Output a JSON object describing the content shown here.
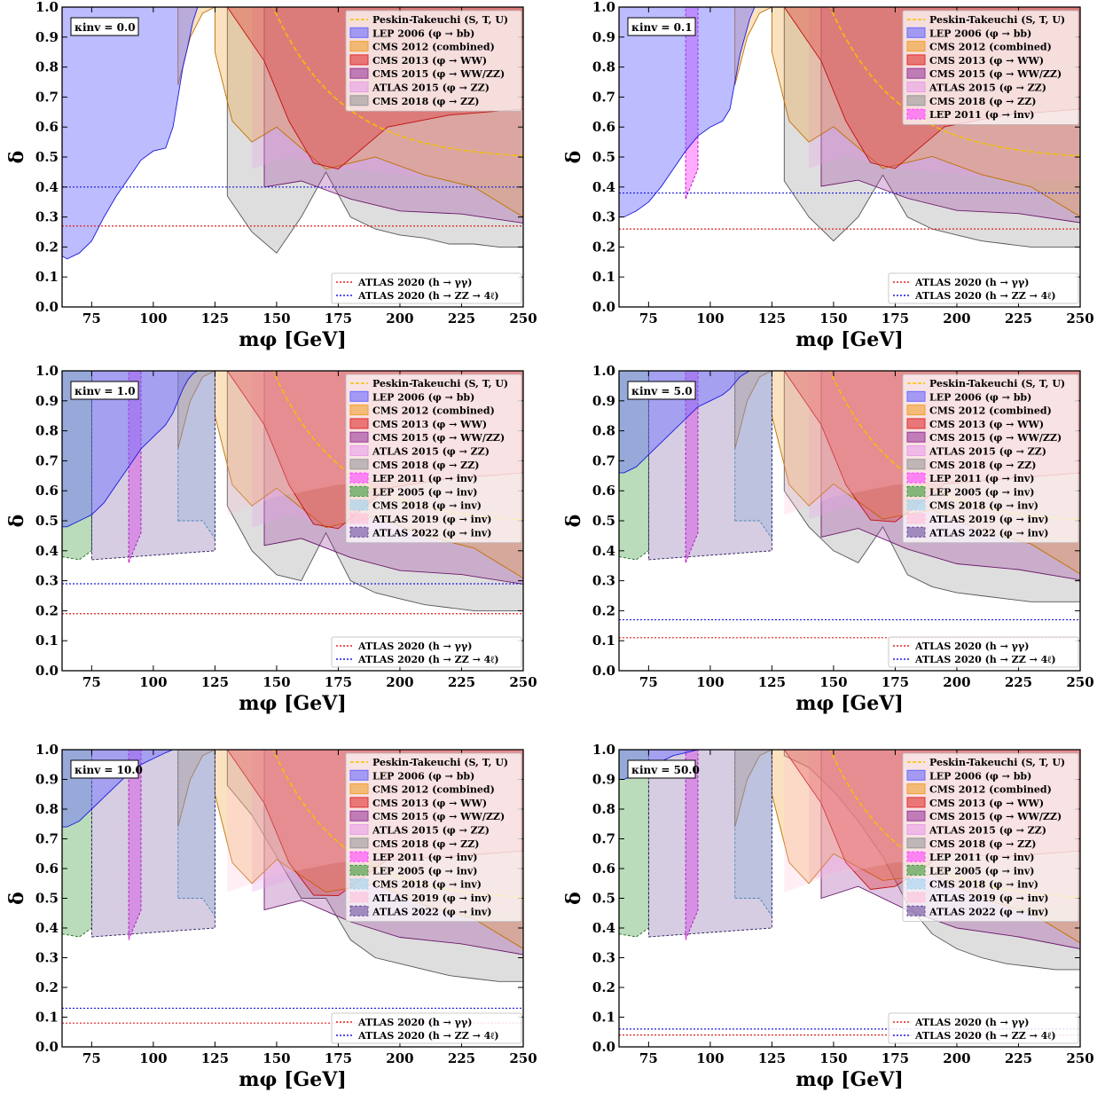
{
  "legend_main_labels": [
    "Peskin-Takeuchi (S, T, U)",
    "LEP 2006 (φ → bb)",
    "CMS 2012 (combined)",
    "CMS 2013 (φ → WW)",
    "CMS 2015 (φ → WW/ZZ)",
    "ATLAS 2015 (φ → ZZ)",
    "CMS 2018 (φ → ZZ)",
    "LEP 2011 (φ → inv)",
    "LEP 2005 (φ → inv)",
    "CMS 2018 (φ → inv)",
    "ATLAS 2019 (φ → inv)",
    "ATLAS 2022 (φ → inv)"
  ],
  "legend_h_labels": [
    "ATLAS 2020 (h → γγ)",
    "ATLAS 2020 (h → ZZ → 4ℓ)"
  ],
  "colors": {
    "peskin": "#f2c200",
    "lep2006": "#6a6aff",
    "cms2012": "#f0a030",
    "cms2013": "#e03030",
    "cms2015": "#9a3a9a",
    "atlas2015": "#e8a0e8",
    "cms2018zz": "#999999",
    "lep2011": "#ff44ff",
    "lep2005": "#3a9a3a",
    "cms2018inv": "#9fd3f0",
    "atlas2019": "#ffc0d8",
    "atlas2022": "#6a4a9a",
    "h_gamgam": "#e02020",
    "h_zz4l": "#1a1ae0"
  },
  "chart_data": [
    {
      "type": "area",
      "kappa_label": "κinv = 0.0",
      "xlabel": "mφ [GeV]",
      "ylabel": "δ",
      "xlim": [
        63,
        250
      ],
      "ylim": [
        0,
        1
      ],
      "xticks": [
        75,
        100,
        125,
        150,
        175,
        200,
        225,
        250
      ],
      "yticks": [
        0.0,
        0.1,
        0.2,
        0.3,
        0.4,
        0.5,
        0.6,
        0.7,
        0.8,
        0.9,
        1.0
      ],
      "legend_count": 7,
      "legend_h_position": "bottom-right",
      "h_lines": {
        "gamgam": 0.27,
        "zz4l": 0.4
      },
      "lep2006_boundary": {
        "x": [
          63,
          65,
          70,
          75,
          80,
          85,
          90,
          95,
          100,
          105,
          108,
          110,
          112,
          114,
          116,
          118
        ],
        "y": [
          0.17,
          0.16,
          0.18,
          0.22,
          0.3,
          0.37,
          0.43,
          0.49,
          0.52,
          0.53,
          0.6,
          0.7,
          0.8,
          0.87,
          0.95,
          1.0
        ]
      },
      "cms2018zz_boundary": {
        "x": [
          130,
          140,
          150,
          160,
          170,
          180,
          190,
          200,
          210,
          220,
          230,
          240,
          250
        ],
        "y": [
          0.37,
          0.25,
          0.18,
          0.3,
          0.45,
          0.3,
          0.26,
          0.24,
          0.23,
          0.21,
          0.21,
          0.2,
          0.2
        ]
      }
    },
    {
      "type": "area",
      "kappa_label": "κinv = 0.1",
      "xlabel": "mφ [GeV]",
      "ylabel": "δ",
      "xlim": [
        63,
        250
      ],
      "ylim": [
        0,
        1
      ],
      "xticks": [
        75,
        100,
        125,
        150,
        175,
        200,
        225,
        250
      ],
      "yticks": [
        0.0,
        0.1,
        0.2,
        0.3,
        0.4,
        0.5,
        0.6,
        0.7,
        0.8,
        0.9,
        1.0
      ],
      "legend_count": 8,
      "legend_h_position": "bottom-right",
      "h_lines": {
        "gamgam": 0.26,
        "zz4l": 0.38
      },
      "lep2006_boundary": {
        "x": [
          63,
          65,
          70,
          75,
          80,
          85,
          90,
          95,
          100,
          105,
          108,
          110,
          112,
          114,
          116,
          118
        ],
        "y": [
          0.3,
          0.3,
          0.32,
          0.35,
          0.4,
          0.46,
          0.52,
          0.57,
          0.6,
          0.62,
          0.66,
          0.75,
          0.84,
          0.9,
          0.96,
          1.0
        ]
      },
      "cms2018zz_boundary": {
        "x": [
          130,
          140,
          150,
          160,
          170,
          180,
          190,
          200,
          210,
          220,
          230,
          240,
          250
        ],
        "y": [
          0.42,
          0.3,
          0.22,
          0.3,
          0.44,
          0.3,
          0.26,
          0.24,
          0.22,
          0.21,
          0.2,
          0.2,
          0.2
        ]
      }
    },
    {
      "type": "area",
      "kappa_label": "κinv = 1.0",
      "xlabel": "mφ [GeV]",
      "ylabel": "δ",
      "xlim": [
        63,
        250
      ],
      "ylim": [
        0,
        1
      ],
      "xticks": [
        75,
        100,
        125,
        150,
        175,
        200,
        225,
        250
      ],
      "yticks": [
        0.0,
        0.1,
        0.2,
        0.3,
        0.4,
        0.5,
        0.6,
        0.7,
        0.8,
        0.9,
        1.0
      ],
      "legend_count": 12,
      "legend_h_position": "bottom-right",
      "h_lines": {
        "gamgam": 0.19,
        "zz4l": 0.29
      },
      "lep2006_boundary": {
        "x": [
          63,
          65,
          70,
          75,
          80,
          85,
          90,
          95,
          100,
          105,
          108,
          110,
          112,
          114,
          116,
          118
        ],
        "y": [
          0.48,
          0.48,
          0.5,
          0.52,
          0.56,
          0.62,
          0.68,
          0.74,
          0.78,
          0.82,
          0.86,
          0.9,
          0.94,
          0.97,
          0.99,
          1.0
        ]
      },
      "cms2018zz_boundary": {
        "x": [
          130,
          140,
          150,
          160,
          170,
          180,
          190,
          200,
          210,
          220,
          230,
          240,
          250
        ],
        "y": [
          0.55,
          0.4,
          0.32,
          0.3,
          0.46,
          0.3,
          0.26,
          0.24,
          0.22,
          0.21,
          0.2,
          0.2,
          0.2
        ]
      }
    },
    {
      "type": "area",
      "kappa_label": "κinv = 5.0",
      "xlabel": "mφ [GeV]",
      "ylabel": "δ",
      "xlim": [
        63,
        250
      ],
      "ylim": [
        0,
        1
      ],
      "xticks": [
        75,
        100,
        125,
        150,
        175,
        200,
        225,
        250
      ],
      "yticks": [
        0.0,
        0.1,
        0.2,
        0.3,
        0.4,
        0.5,
        0.6,
        0.7,
        0.8,
        0.9,
        1.0
      ],
      "legend_count": 12,
      "legend_h_position": "bottom-right",
      "h_lines": {
        "gamgam": 0.11,
        "zz4l": 0.17
      },
      "lep2006_boundary": {
        "x": [
          63,
          65,
          70,
          75,
          80,
          85,
          90,
          95,
          100,
          105,
          108,
          110,
          112,
          114,
          116,
          118
        ],
        "y": [
          0.66,
          0.66,
          0.68,
          0.72,
          0.76,
          0.8,
          0.84,
          0.88,
          0.9,
          0.92,
          0.94,
          0.96,
          0.98,
          0.99,
          1.0,
          1.0
        ]
      },
      "cms2018zz_boundary": {
        "x": [
          130,
          140,
          150,
          160,
          170,
          180,
          190,
          200,
          210,
          220,
          230,
          240,
          250
        ],
        "y": [
          0.6,
          0.48,
          0.4,
          0.36,
          0.48,
          0.32,
          0.28,
          0.26,
          0.25,
          0.24,
          0.23,
          0.23,
          0.23
        ]
      }
    },
    {
      "type": "area",
      "kappa_label": "κinv = 10.0",
      "xlabel": "mφ [GeV]",
      "ylabel": "δ",
      "xlim": [
        63,
        250
      ],
      "ylim": [
        0,
        1
      ],
      "xticks": [
        75,
        100,
        125,
        150,
        175,
        200,
        225,
        250
      ],
      "yticks": [
        0.0,
        0.1,
        0.2,
        0.3,
        0.4,
        0.5,
        0.6,
        0.7,
        0.8,
        0.9,
        1.0
      ],
      "legend_count": 12,
      "legend_h_position": "bottom-right",
      "h_lines": {
        "gamgam": 0.08,
        "zz4l": 0.13
      },
      "lep2006_boundary": {
        "x": [
          63,
          65,
          70,
          75,
          80,
          85,
          90,
          95,
          100,
          105,
          108,
          110,
          112,
          114,
          116,
          118
        ],
        "y": [
          0.74,
          0.74,
          0.76,
          0.8,
          0.84,
          0.88,
          0.92,
          0.95,
          0.97,
          0.99,
          1.0,
          1.0,
          1.0,
          1.0,
          1.0,
          1.0
        ]
      },
      "cms2018zz_boundary": {
        "x": [
          130,
          140,
          150,
          160,
          170,
          180,
          190,
          200,
          210,
          220,
          230,
          240,
          250
        ],
        "y": [
          0.88,
          0.78,
          0.64,
          0.5,
          0.5,
          0.36,
          0.3,
          0.28,
          0.26,
          0.24,
          0.23,
          0.22,
          0.22
        ]
      }
    },
    {
      "type": "area",
      "kappa_label": "κinv = 50.0",
      "xlabel": "mφ [GeV]",
      "ylabel": "δ",
      "xlim": [
        63,
        250
      ],
      "ylim": [
        0,
        1
      ],
      "xticks": [
        75,
        100,
        125,
        150,
        175,
        200,
        225,
        250
      ],
      "yticks": [
        0.0,
        0.1,
        0.2,
        0.3,
        0.4,
        0.5,
        0.6,
        0.7,
        0.8,
        0.9,
        1.0
      ],
      "legend_count": 12,
      "legend_h_position": "bottom-right",
      "h_lines": {
        "gamgam": 0.04,
        "zz4l": 0.06
      },
      "lep2006_boundary": {
        "x": [
          63,
          65,
          70,
          75,
          80,
          85,
          90,
          95,
          100,
          105,
          108,
          110,
          112,
          114,
          116,
          118
        ],
        "y": [
          0.9,
          0.9,
          0.92,
          0.94,
          0.96,
          0.98,
          0.99,
          1.0,
          1.0,
          1.0,
          1.0,
          1.0,
          1.0,
          1.0,
          1.0,
          1.0
        ]
      },
      "cms2018zz_boundary": {
        "x": [
          130,
          140,
          150,
          160,
          170,
          180,
          190,
          200,
          210,
          220,
          230,
          240,
          250
        ],
        "y": [
          0.98,
          0.94,
          0.86,
          0.76,
          0.64,
          0.48,
          0.38,
          0.33,
          0.3,
          0.28,
          0.27,
          0.26,
          0.26
        ]
      }
    }
  ]
}
